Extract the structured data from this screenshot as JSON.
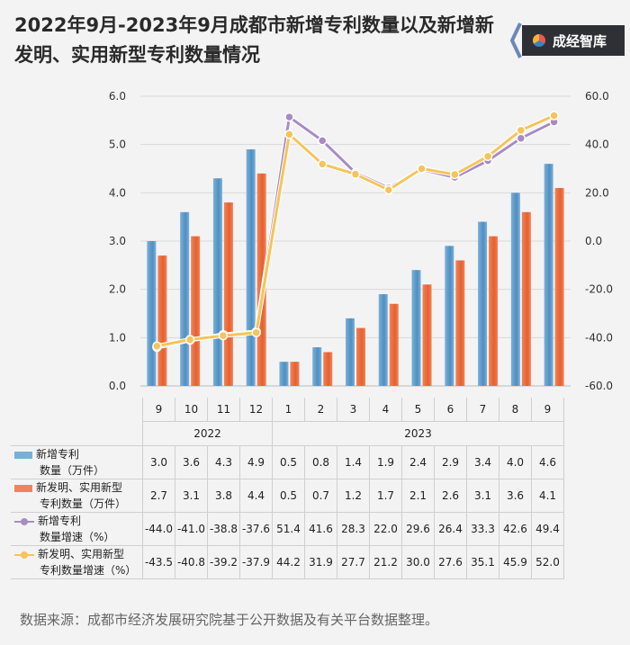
{
  "title": "2022年9月-2023年9月成都市新增专利数量以及新增新发明、实用新型专利数量情况",
  "brand": {
    "name": "成经智库",
    "logo_icon": "tricolor-circle-icon"
  },
  "source": "数据来源：成都市经济发展研究院基于公开数据及有关平台数据整理。",
  "colors": {
    "bar1": "#7ab0d8",
    "bar2": "#f0835a",
    "line1": "#a98bc4",
    "line2": "#f5c45a"
  },
  "chart_data": {
    "type": "bar",
    "categories": [
      "9",
      "10",
      "11",
      "12",
      "1",
      "2",
      "3",
      "4",
      "5",
      "6",
      "7",
      "8",
      "9"
    ],
    "years": [
      {
        "label": "2022",
        "span": 4
      },
      {
        "label": "2023",
        "span": 9
      }
    ],
    "left_axis": {
      "min": 0,
      "max": 6,
      "step": 1,
      "ticks": [
        "0.0",
        "1.0",
        "2.0",
        "3.0",
        "4.0",
        "5.0",
        "6.0"
      ]
    },
    "right_axis": {
      "min": -60,
      "max": 60,
      "step": 20,
      "ticks": [
        "-60.0",
        "-40.0",
        "-20.0",
        "0.0",
        "20.0",
        "40.0",
        "60.0"
      ]
    },
    "series": [
      {
        "name": "新增专利数量（万件）",
        "legend_lines": [
          "新增专利",
          "数量（万件）"
        ],
        "kind": "bar",
        "axis": "left",
        "values": [
          3.0,
          3.6,
          4.3,
          4.9,
          0.5,
          0.8,
          1.4,
          1.9,
          2.4,
          2.9,
          3.4,
          4.0,
          4.6
        ],
        "labels": [
          "3.0",
          "3.6",
          "4.3",
          "4.9",
          "0.5",
          "0.8",
          "1.4",
          "1.9",
          "2.4",
          "2.9",
          "3.4",
          "4.0",
          "4.6"
        ]
      },
      {
        "name": "新发明、实用新型专利数量（万件）",
        "legend_lines": [
          "新发明、实用新型",
          "专利数量（万件）"
        ],
        "kind": "bar",
        "axis": "left",
        "values": [
          2.7,
          3.1,
          3.8,
          4.4,
          0.5,
          0.7,
          1.2,
          1.7,
          2.1,
          2.6,
          3.1,
          3.6,
          4.1
        ],
        "labels": [
          "2.7",
          "3.1",
          "3.8",
          "4.4",
          "0.5",
          "0.7",
          "1.2",
          "1.7",
          "2.1",
          "2.6",
          "3.1",
          "3.6",
          "4.1"
        ]
      },
      {
        "name": "新增专利数量增速（%）",
        "legend_lines": [
          "新增专利",
          "数量增速（%）"
        ],
        "kind": "line",
        "axis": "right",
        "values": [
          -44.0,
          -41.0,
          -38.8,
          -37.6,
          51.4,
          41.6,
          28.3,
          22.0,
          29.6,
          26.4,
          33.3,
          42.6,
          49.4
        ],
        "labels": [
          "-44.0",
          "-41.0",
          "-38.8",
          "-37.6",
          "51.4",
          "41.6",
          "28.3",
          "22.0",
          "29.6",
          "26.4",
          "33.3",
          "42.6",
          "49.4"
        ]
      },
      {
        "name": "新发明、实用新型专利数量增速（%）",
        "legend_lines": [
          "新发明、实用新型",
          "专利数量增速（%）"
        ],
        "kind": "line",
        "axis": "right",
        "values": [
          -43.5,
          -40.8,
          -39.2,
          -37.9,
          44.2,
          31.9,
          27.7,
          21.2,
          30.0,
          27.6,
          35.1,
          45.9,
          52.0
        ],
        "labels": [
          "-43.5",
          "-40.8",
          "-39.2",
          "-37.9",
          "44.2",
          "31.9",
          "27.7",
          "21.2",
          "30.0",
          "27.6",
          "35.1",
          "45.9",
          "52.0"
        ]
      }
    ]
  }
}
